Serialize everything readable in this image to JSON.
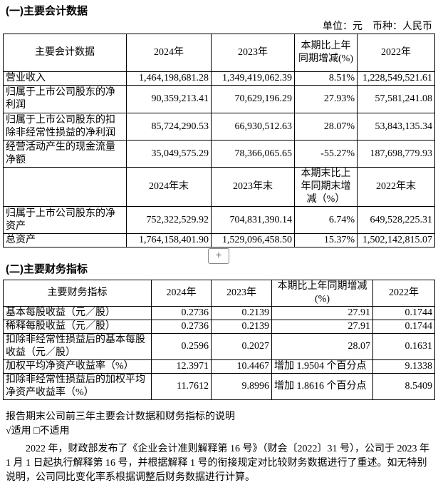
{
  "section1": {
    "title": "(一)主要会计数据",
    "unit": "单位：元　币种：人民币",
    "header1": [
      "主要会计数据",
      "2024年",
      "2023年",
      "本期比上年同期增减(%)",
      "2022年"
    ],
    "rows1": [
      [
        "营业收入",
        "1,464,198,681.28",
        "1,349,419,062.39",
        "8.51%",
        "1,228,549,521.61"
      ],
      [
        "归属于上市公司股东的净利润",
        "90,359,213.41",
        "70,629,196.29",
        "27.93%",
        "57,581,241.08"
      ],
      [
        "归属于上市公司股东的扣除非经常性损益的净利润",
        "85,724,290.53",
        "66,930,512.63",
        "28.07%",
        "53,843,135.34"
      ],
      [
        "经营活动产生的现金流量净额",
        "35,049,575.29",
        "78,366,065.65",
        "-55.27%",
        "187,698,779.93"
      ]
    ],
    "header2": [
      "",
      "2024年末",
      "2023年末",
      "本期末比上年同期末增减（%）",
      "2022年末"
    ],
    "rows2": [
      [
        "归属于上市公司股东的净资产",
        "752,322,529.92",
        "704,831,390.14",
        "6.74%",
        "649,528,225.31"
      ],
      [
        "总资产",
        "1,764,158,401.90",
        "1,529,096,458.50",
        "15.37%",
        "1,502,142,815.07"
      ]
    ]
  },
  "expand_button": "+",
  "section2": {
    "title": "(二)主要财务指标",
    "header": [
      "主要财务指标",
      "2024年",
      "2023年",
      "本期比上年同期增减(%)",
      "2022年"
    ],
    "rows": [
      [
        "基本每股收益（元／股）",
        "0.2736",
        "0.2139",
        "27.91",
        "0.1744"
      ],
      [
        "稀释每股收益（元／股）",
        "0.2736",
        "0.2139",
        "27.91",
        "0.1744"
      ],
      [
        "扣除非经常性损益后的基本每股收益（元／股）",
        "0.2596",
        "0.2027",
        "28.07",
        "0.1631"
      ],
      [
        "加权平均净资产收益率（%）",
        "12.3971",
        "10.4467",
        "增加 1.9504 个百分点",
        "9.1338"
      ],
      [
        "扣除非经常性损益后的加权平均净资产收益率（%）",
        "11.7612",
        "9.8996",
        "增加 1.8616 个百分点",
        "8.5409"
      ]
    ]
  },
  "notes": {
    "heading": "报告期末公司前三年主要会计数据和财务指标的说明",
    "applicable": "√适用 □不适用",
    "paragraph": "2022 年，财政部发布了《企业会计准则解释第 16 号》（财会〔2022〕31 号），公司于 2023 年 1 月 1 日起执行解释第 16 号，并根据解释 1 号的衔接规定对比较财务数据进行了重述。如无特别说明，公司同比变化率系根据调整后财务数据进行计算。"
  }
}
